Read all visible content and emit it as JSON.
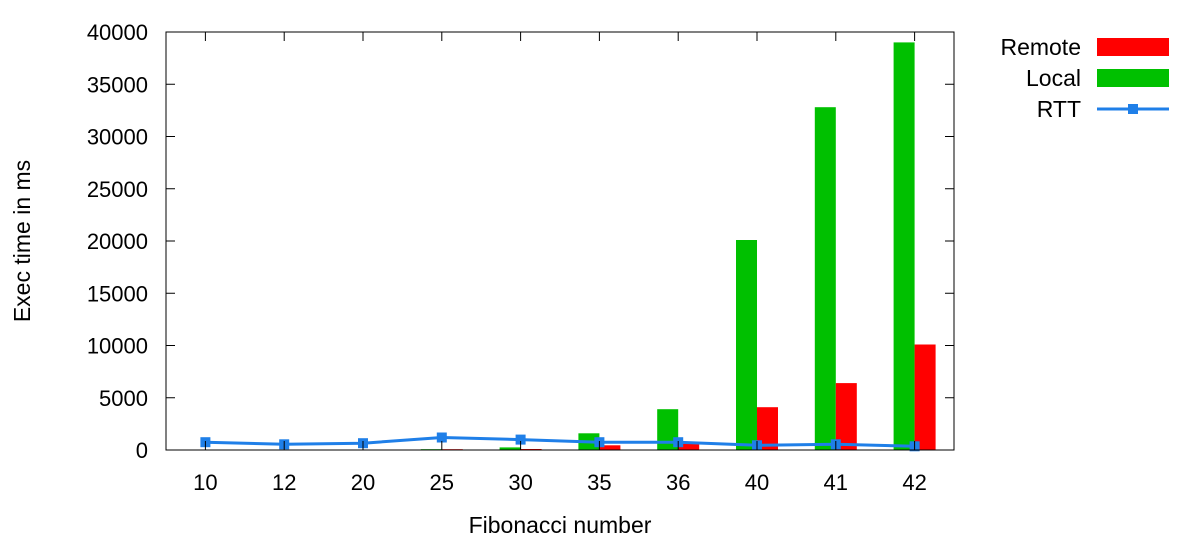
{
  "chart_data": {
    "type": "bar",
    "xlabel": "Fibonacci number",
    "ylabel": "Exec time in ms",
    "ylim": [
      0,
      40000
    ],
    "y_ticks": [
      0,
      5000,
      10000,
      15000,
      20000,
      25000,
      30000,
      35000,
      40000
    ],
    "categories": [
      "10",
      "12",
      "20",
      "25",
      "30",
      "35",
      "36",
      "40",
      "41",
      "42"
    ],
    "grid": false,
    "legend_position": "outside-top-right",
    "series": [
      {
        "name": "Local",
        "kind": "bar",
        "color": "#00c000",
        "values": [
          50,
          50,
          50,
          80,
          250,
          1600,
          3900,
          20100,
          32800,
          39000
        ]
      },
      {
        "name": "Remote",
        "kind": "bar",
        "color": "#ff0000",
        "values": [
          50,
          50,
          50,
          80,
          100,
          450,
          600,
          4100,
          6400,
          10100
        ]
      },
      {
        "name": "RTT",
        "kind": "line",
        "marker": "square",
        "color": "#1f7fe8",
        "values": [
          750,
          550,
          650,
          1200,
          1000,
          750,
          750,
          450,
          550,
          350
        ]
      }
    ],
    "legend": [
      {
        "label": "Remote",
        "color": "#ff0000",
        "style": "bar"
      },
      {
        "label": "Local",
        "color": "#00c000",
        "style": "bar"
      },
      {
        "label": "RTT",
        "color": "#1f7fe8",
        "style": "line"
      }
    ]
  }
}
